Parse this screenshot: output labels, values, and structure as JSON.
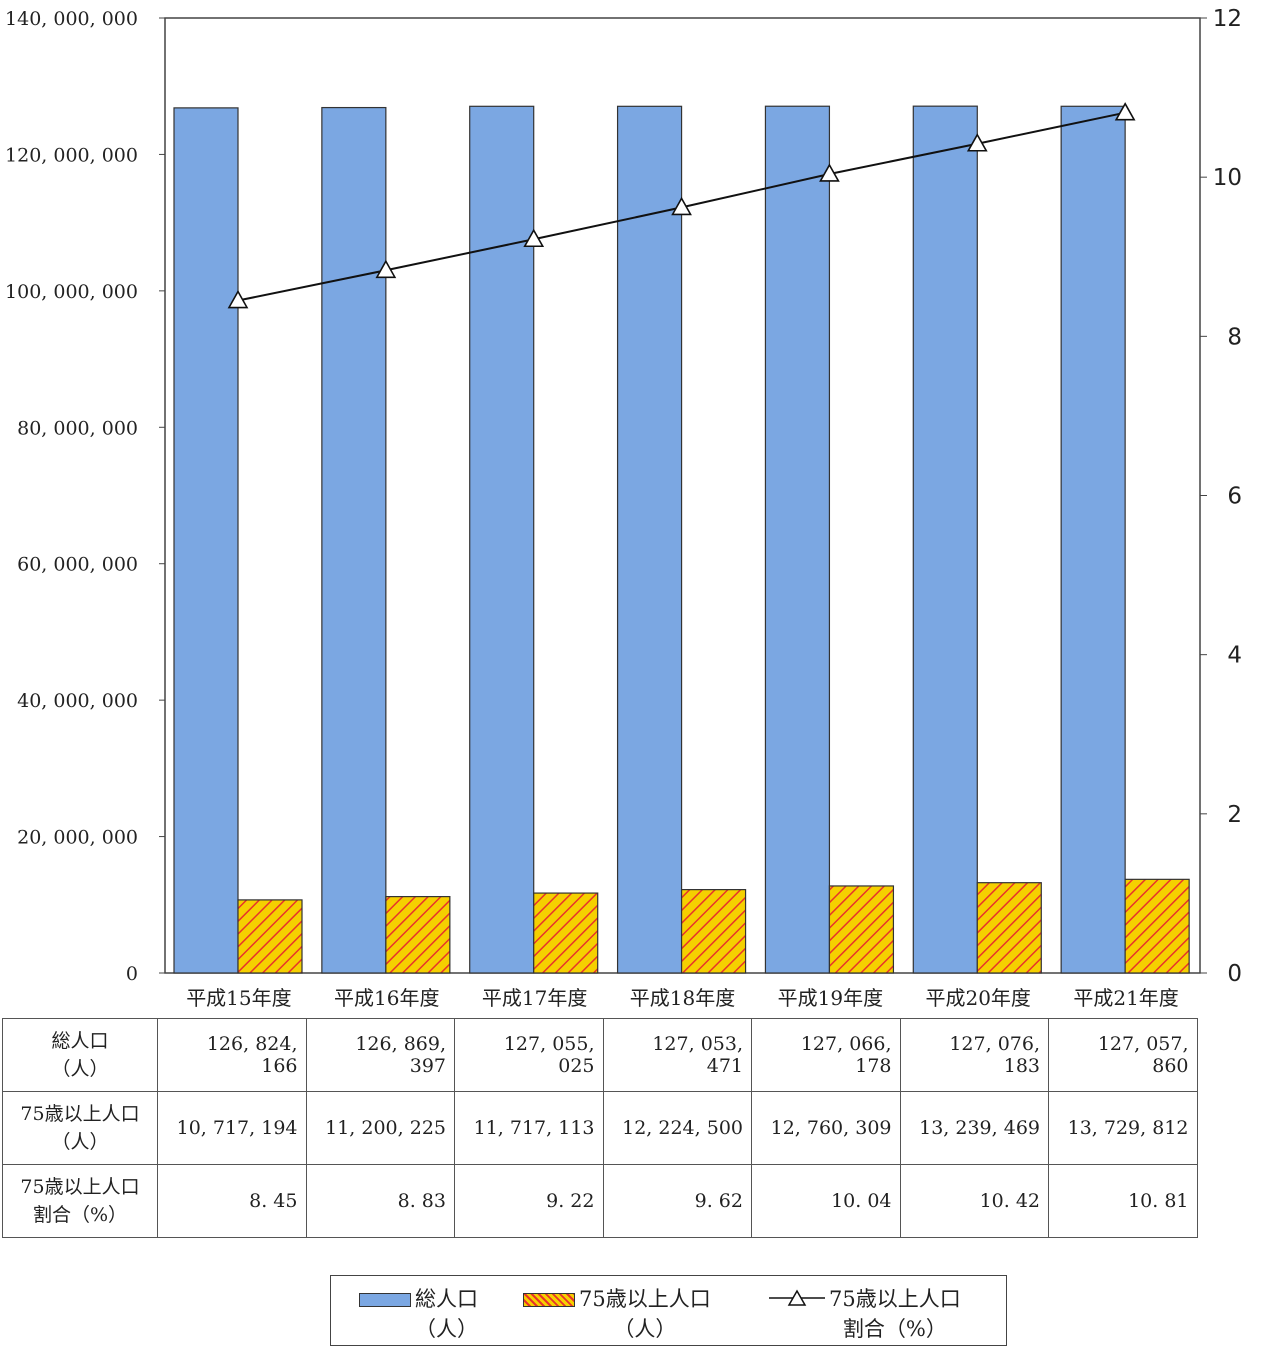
{
  "chart_data": {
    "type": "bar",
    "categories": [
      "平成15年度",
      "平成16年度",
      "平成17年度",
      "平成18年度",
      "平成19年度",
      "平成20年度",
      "平成21年度"
    ],
    "series": [
      {
        "name": "総人口\n（人）",
        "kind": "bar",
        "axis": "left",
        "color": "#7ba7e2",
        "values": [
          126824166,
          126869397,
          127055025,
          127053471,
          127066178,
          127076183,
          127057860
        ]
      },
      {
        "name": "75歳以上人口\n（人）",
        "kind": "bar",
        "axis": "left",
        "color": "#f5d000",
        "hatch_color": "#e8332a",
        "values": [
          10717194,
          11200225,
          11717113,
          12224500,
          12760309,
          13239469,
          13729812
        ]
      },
      {
        "name": "75歳以上人口\n割合（%）",
        "kind": "line",
        "axis": "right",
        "color": "#111111",
        "marker": "triangle",
        "values": [
          8.45,
          8.83,
          9.22,
          9.62,
          10.04,
          10.42,
          10.81
        ]
      }
    ],
    "y_left": {
      "min": 0,
      "max": 140000000,
      "ticks": [
        "0",
        "20, 000, 000",
        "40, 000, 000",
        "60, 000, 000",
        "80, 000, 000",
        "100, 000, 000",
        "120, 000, 000",
        "140, 000, 000"
      ]
    },
    "y_right": {
      "min": 0,
      "max": 12,
      "ticks": [
        "0",
        "2",
        "4",
        "6",
        "8",
        "10",
        "12"
      ]
    },
    "grid": false,
    "legend_position": "bottom"
  },
  "table": {
    "rows": [
      {
        "header": "総人口\n（人）",
        "values": [
          "126, 824, 166",
          "126, 869, 397",
          "127, 055, 025",
          "127, 053, 471",
          "127, 066, 178",
          "127, 076, 183",
          "127, 057, 860"
        ]
      },
      {
        "header": "75歳以上人口\n（人）",
        "values": [
          "10, 717, 194",
          "11, 200, 225",
          "11, 717, 113",
          "12, 224, 500",
          "12, 760, 309",
          "13, 239, 469",
          "13, 729, 812"
        ]
      },
      {
        "header": "75歳以上人口\n割合（%）",
        "values": [
          "8. 45",
          "8. 83",
          "9. 22",
          "9. 62",
          "10. 04",
          "10. 42",
          "10. 81"
        ]
      }
    ]
  },
  "legend": {
    "total_label": "総人口\n（人）",
    "elderly_label": "75歳以上人口\n（人）",
    "ratio_label": "75歳以上人口\n割合（%）"
  }
}
